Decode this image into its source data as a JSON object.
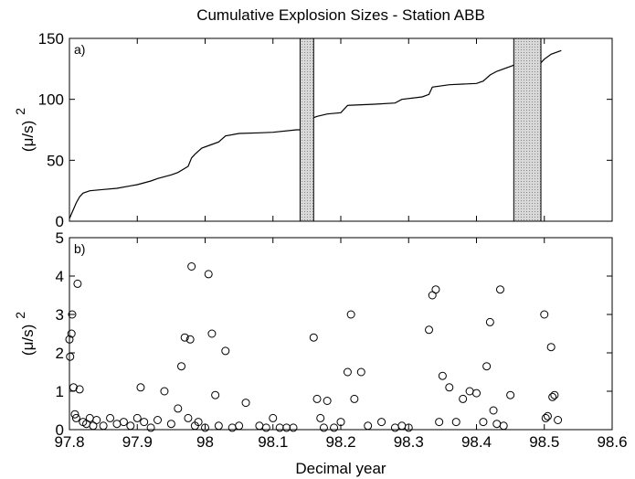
{
  "chart_data": [
    {
      "type": "line",
      "title": "Cumulative Explosion Sizes - Station ABB",
      "panel_label": "a)",
      "ylabel": "(μ/s)",
      "ylabel_exponent": "2",
      "x": [
        97.8,
        97.803,
        97.806,
        97.81,
        97.815,
        97.82,
        97.83,
        97.85,
        97.87,
        97.89,
        97.9,
        97.92,
        97.93,
        97.95,
        97.96,
        97.975,
        97.98,
        97.985,
        97.995,
        98.01,
        98.02,
        98.03,
        98.05,
        98.08,
        98.1,
        98.135,
        98.14,
        null,
        98.16,
        98.165,
        98.18,
        98.2,
        98.21,
        98.25,
        98.28,
        98.29,
        98.32,
        98.33,
        98.335,
        98.36,
        98.4,
        98.41,
        98.42,
        98.43,
        98.45,
        98.455,
        null,
        98.495,
        98.5,
        98.51,
        98.525
      ],
      "series": [
        {
          "color": "#000000",
          "values": [
            2,
            6,
            10,
            15,
            20,
            23,
            25,
            26,
            27,
            29,
            30,
            33,
            35,
            38,
            40,
            45,
            52,
            55,
            60,
            63,
            65,
            70,
            72,
            72.5,
            73,
            75,
            75,
            null,
            85,
            86,
            88,
            89,
            95,
            96,
            97,
            100,
            102,
            104,
            110,
            112,
            113,
            115,
            120,
            123,
            127,
            128,
            null,
            130,
            133,
            137,
            140
          ]
        }
      ],
      "gaps": [
        [
          98.14,
          98.16
        ],
        [
          98.455,
          98.495
        ]
      ],
      "xlim": [
        97.8,
        98.6
      ],
      "xticks": [
        97.8,
        97.9,
        98,
        98.1,
        98.2,
        98.3,
        98.4,
        98.5,
        98.6
      ],
      "ylim": [
        0,
        150
      ],
      "yticks": [
        0,
        50,
        100,
        150
      ]
    },
    {
      "type": "scatter",
      "panel_label": "b)",
      "ylabel": "(μ/s)",
      "ylabel_exponent": "2",
      "xlabel": "Decimal year",
      "x": [
        97.8,
        97.801,
        97.803,
        97.804,
        97.806,
        97.808,
        97.81,
        97.812,
        97.815,
        97.82,
        97.825,
        97.83,
        97.835,
        97.84,
        97.85,
        97.86,
        97.87,
        97.88,
        97.89,
        97.9,
        97.905,
        97.91,
        97.92,
        97.93,
        97.94,
        97.95,
        97.96,
        97.965,
        97.97,
        97.975,
        97.978,
        97.98,
        97.985,
        97.99,
        98.0,
        98.005,
        98.01,
        98.015,
        98.02,
        98.03,
        98.04,
        98.05,
        98.06,
        98.08,
        98.09,
        98.1,
        98.11,
        98.12,
        98.13,
        98.16,
        98.165,
        98.17,
        98.175,
        98.18,
        98.19,
        98.2,
        98.21,
        98.215,
        98.22,
        98.23,
        98.24,
        98.26,
        98.28,
        98.29,
        98.3,
        98.33,
        98.335,
        98.34,
        98.345,
        98.35,
        98.36,
        98.37,
        98.38,
        98.39,
        98.4,
        98.41,
        98.415,
        98.42,
        98.425,
        98.43,
        98.435,
        98.44,
        98.45,
        98.5,
        98.502,
        98.505,
        98.51,
        98.512,
        98.515,
        98.52
      ],
      "series": [
        {
          "color": "#000000",
          "values": [
            2.35,
            1.9,
            2.5,
            3.0,
            1.1,
            0.4,
            0.3,
            3.8,
            1.05,
            0.2,
            0.15,
            0.3,
            0.1,
            0.25,
            0.1,
            0.3,
            0.15,
            0.2,
            0.1,
            0.3,
            1.1,
            0.2,
            0.05,
            0.25,
            1.0,
            0.15,
            0.55,
            1.65,
            2.4,
            0.3,
            2.35,
            4.25,
            0.1,
            0.2,
            0.05,
            4.05,
            2.5,
            0.9,
            0.1,
            2.05,
            0.05,
            0.1,
            0.7,
            0.1,
            0.05,
            0.3,
            0.05,
            0.05,
            0.05,
            2.4,
            0.8,
            0.3,
            0.05,
            0.75,
            0.05,
            0.2,
            1.5,
            3.0,
            0.8,
            1.5,
            0.1,
            0.2,
            0.05,
            0.1,
            0.05,
            2.6,
            3.5,
            3.65,
            0.2,
            1.4,
            1.1,
            0.2,
            0.8,
            1.0,
            0.95,
            0.2,
            1.65,
            2.8,
            0.5,
            0.15,
            3.65,
            0.1,
            0.9,
            3.0,
            0.3,
            0.35,
            2.15,
            0.85,
            0.9,
            0.25
          ]
        }
      ],
      "xlim": [
        97.8,
        98.6
      ],
      "xticks": [
        97.8,
        97.9,
        98,
        98.1,
        98.2,
        98.3,
        98.4,
        98.5,
        98.6
      ],
      "ylim": [
        0,
        5
      ],
      "yticks": [
        0,
        1,
        2,
        3,
        4,
        5
      ]
    }
  ]
}
